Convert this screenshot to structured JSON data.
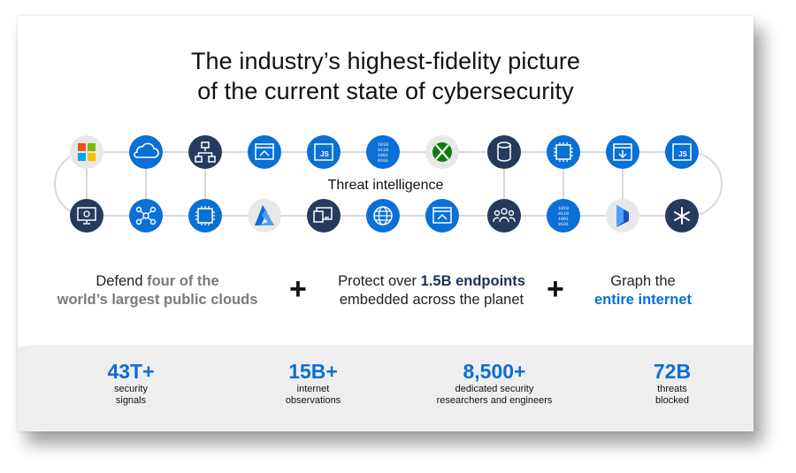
{
  "title": {
    "line1": "The industry’s highest-fidelity picture",
    "line2": "of the current state of cybersecurity"
  },
  "center_label": "Threat intelligence",
  "icons": {
    "top": [
      "microsoft-logo",
      "cloud",
      "network-hierarchy",
      "browser-window",
      "javascript-file",
      "binary-data",
      "xbox-logo",
      "database",
      "cpu-chip",
      "calendar-download",
      "javascript-file"
    ],
    "bottom": [
      "monitor-settings",
      "network-nodes",
      "cpu-chip",
      "azure-logo",
      "terminal-window",
      "globe-network",
      "browser-window",
      "people-group",
      "binary-data",
      "dynamics-logo",
      "asterisk"
    ]
  },
  "pillars": [
    {
      "pre": "Defend ",
      "em": "four of the",
      "line2": "world’s largest public clouds"
    },
    {
      "pre": "Protect over ",
      "em": "1.5B endpoints",
      "line2": "embedded across the planet"
    },
    {
      "pre": "Graph the",
      "em": "entire internet"
    }
  ],
  "plus": "+",
  "stats": [
    {
      "value": "43T+",
      "l1": "security",
      "l2": "signals"
    },
    {
      "value": "15B+",
      "l1": "internet",
      "l2": "observations"
    },
    {
      "value": "8,500+",
      "l1": "dedicated security",
      "l2": "researchers and engineers"
    },
    {
      "value": "72B",
      "l1": "threats",
      "l2": "blocked"
    }
  ],
  "colors": {
    "navy": "#243a5e",
    "blue": "#0a6fd6",
    "grey": "#e6e6e6",
    "stats_bg": "#eeeeee"
  }
}
